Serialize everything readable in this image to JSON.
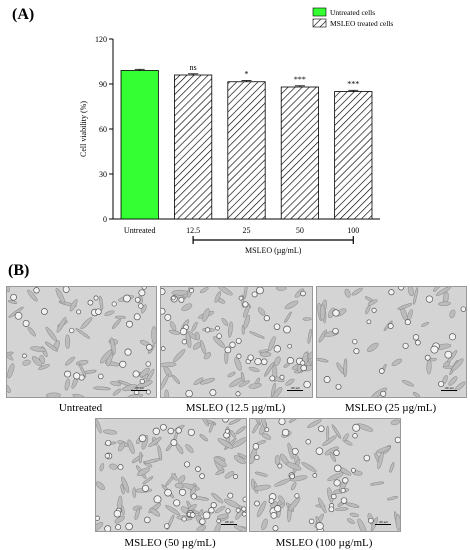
{
  "panels": {
    "a_label": "(A)",
    "b_label": "(B)"
  },
  "chart_data": {
    "type": "bar",
    "categories": [
      "Untreated",
      "12.5",
      "25",
      "50",
      "100"
    ],
    "values": [
      99,
      96,
      91.5,
      88,
      85
    ],
    "errors": [
      0.8,
      0.8,
      0.8,
      0.8,
      0.8
    ],
    "significance": [
      "",
      "ns",
      "*",
      "***",
      "***"
    ],
    "ylabel": "Cell viability (%)",
    "xlabel": "MSLEO (µg/mL)",
    "ylim": [
      0,
      120
    ],
    "yticks": [
      0,
      30,
      60,
      90,
      120
    ],
    "legend": {
      "placement": "top-right",
      "entries": [
        {
          "label": "Untreated cells",
          "style": "solid",
          "color": "#33ff33"
        },
        {
          "label": "MSLEO treated cells",
          "style": "hatched",
          "color": "#ffffff"
        }
      ]
    },
    "colors": {
      "untreated": "#33ff33",
      "hatch": "#000000"
    }
  },
  "micrographs": [
    {
      "caption": "Untreated",
      "scalebar": "100 µm"
    },
    {
      "caption": "MSLEO (12.5 µg/mL)",
      "scalebar": "100 µm"
    },
    {
      "caption": "MSLEO (25 µg/mL)",
      "scalebar": "100 µm"
    },
    {
      "caption": "MSLEO (50 µg/mL)",
      "scalebar": "100 µm"
    },
    {
      "caption": "MSLEO (100 µg/mL)",
      "scalebar": "100 µm"
    }
  ]
}
